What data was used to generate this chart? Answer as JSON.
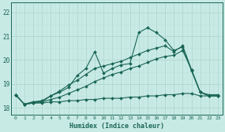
{
  "xlabel": "Humidex (Indice chaleur)",
  "xlim": [
    -0.5,
    23.5
  ],
  "ylim": [
    17.7,
    22.4
  ],
  "xticks": [
    0,
    1,
    2,
    3,
    4,
    5,
    6,
    7,
    8,
    9,
    10,
    11,
    12,
    13,
    14,
    15,
    16,
    17,
    18,
    19,
    20,
    21,
    22,
    23
  ],
  "yticks": [
    18,
    19,
    20,
    21,
    22
  ],
  "bg_color": "#c8eae4",
  "grid_major_color": "#b0d8d0",
  "grid_minor_color": "#c0e2dc",
  "line_color": "#1a6655",
  "series": [
    [
      18.55,
      18.15,
      18.25,
      18.25,
      18.5,
      18.65,
      18.85,
      19.35,
      19.65,
      20.35,
      19.45,
      19.65,
      19.8,
      19.85,
      21.15,
      21.35,
      21.15,
      20.85,
      20.4,
      20.55,
      19.55,
      18.65,
      18.55,
      18.55
    ],
    [
      18.55,
      18.15,
      18.25,
      18.3,
      18.5,
      18.7,
      18.95,
      19.15,
      19.4,
      19.65,
      19.75,
      19.85,
      19.95,
      20.1,
      20.25,
      20.4,
      20.5,
      20.6,
      20.35,
      20.6,
      19.6,
      18.65,
      18.5,
      18.5
    ],
    [
      18.55,
      18.15,
      18.2,
      18.25,
      18.35,
      18.45,
      18.6,
      18.75,
      18.9,
      19.1,
      19.25,
      19.4,
      19.5,
      19.65,
      19.75,
      19.9,
      20.05,
      20.15,
      20.2,
      20.4,
      19.6,
      18.65,
      18.5,
      18.5
    ],
    [
      18.55,
      18.15,
      18.2,
      18.2,
      18.25,
      18.25,
      18.3,
      18.3,
      18.35,
      18.35,
      18.4,
      18.4,
      18.4,
      18.45,
      18.45,
      18.5,
      18.5,
      18.55,
      18.55,
      18.6,
      18.6,
      18.5,
      18.5,
      18.5
    ]
  ],
  "marker_series": [
    0,
    1,
    2,
    3
  ]
}
